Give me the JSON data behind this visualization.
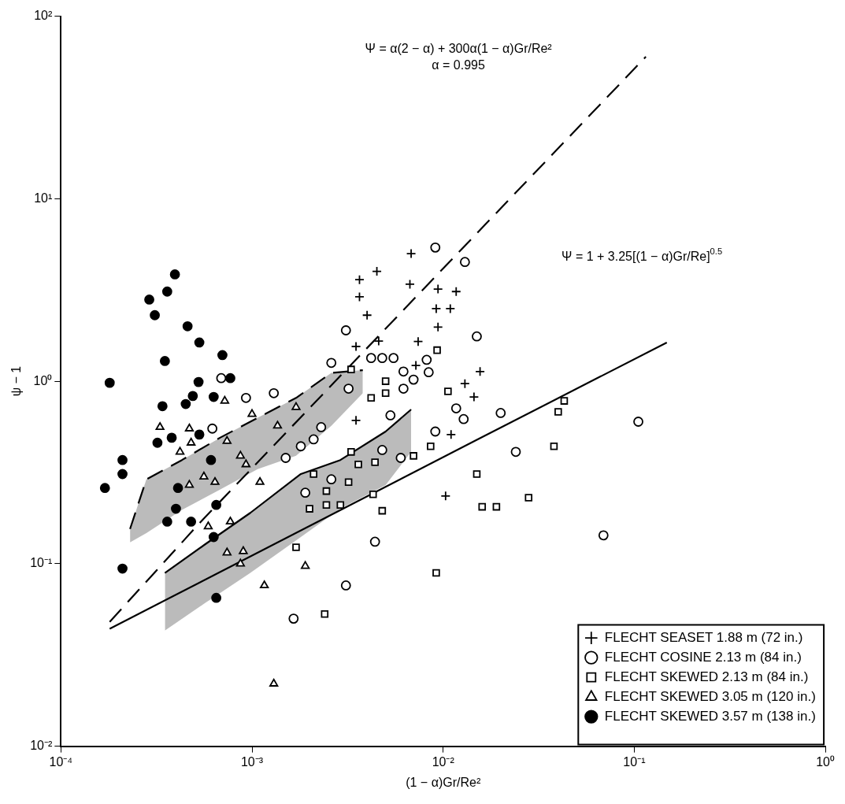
{
  "chart_data": {
    "type": "scatter",
    "xlabel": "(1 − α)Gr/Re²",
    "ylabel": "ψ − 1",
    "log": "xy",
    "grid": false,
    "legend": "bottom right",
    "xlim": [
      0.0001,
      1
    ],
    "ylim": [
      0.01,
      100
    ],
    "xticks": [
      {
        "value": 0.0001,
        "label": "10⁻⁴"
      },
      {
        "value": 0.001,
        "label": "10⁻³"
      },
      {
        "value": 0.01,
        "label": "10⁻²"
      },
      {
        "value": 0.1,
        "label": "10⁻¹"
      },
      {
        "value": 1,
        "label": "10⁰"
      }
    ],
    "yticks": [
      {
        "value": 0.01,
        "label": "10⁻²"
      },
      {
        "value": 0.1,
        "label": "10⁻¹"
      },
      {
        "value": 1,
        "label": "10⁰"
      },
      {
        "value": 10,
        "label": "10¹"
      },
      {
        "value": 100,
        "label": "10²"
      }
    ],
    "annotations": [
      "Ψ = α(2 − α) + 300α(1 − α)Gr/Re²",
      "α = 0.995",
      "Ψ = 1 + 3.25[(1 − α)Gr/Re]$^{0.5}$"
    ],
    "series": [
      {
        "type": "line",
        "color": "#000000",
        "line_style": "dashed",
        "x": [
          0.00023,
          0.00028,
          0.00043,
          0.00068,
          0.00107,
          0.0017,
          0.0026,
          0.0038
        ],
        "values": [
          0.155,
          0.29,
          0.37,
          0.49,
          0.63,
          0.81,
          1.11,
          1.15
        ],
        "upper": [
          0.155,
          0.29,
          0.37,
          0.49,
          0.63,
          0.81,
          1.11,
          1.15
        ],
        "lower": [
          0.131,
          0.147,
          0.197,
          0.255,
          0.33,
          0.39,
          0.57,
          0.86
        ]
      },
      {
        "type": "line",
        "color": "#000000",
        "line_style": "solid",
        "x": [
          0.00035,
          0.00057,
          0.00098,
          0.0018,
          0.0029,
          0.005,
          0.0068
        ],
        "values": [
          0.089,
          0.128,
          0.19,
          0.31,
          0.37,
          0.53,
          0.7
        ],
        "upper": [
          0.089,
          0.128,
          0.19,
          0.31,
          0.37,
          0.53,
          0.7
        ],
        "lower": [
          0.043,
          0.061,
          0.089,
          0.14,
          0.2,
          0.27,
          0.41
        ]
      },
      {
        "type": "line",
        "color": "#000000",
        "line_style": "dashed",
        "x": [
          0.00018,
          0.00054,
          0.115
        ],
        "values": [
          0.048,
          0.17,
          60
        ]
      },
      {
        "type": "line",
        "color": "#000000",
        "line_style": "solid",
        "x": [
          0.00018,
          0.0146,
          0.148
        ],
        "values": [
          0.044,
          0.47,
          1.63
        ]
      },
      {
        "name": "FLECHT SEASET 1.88 m (72 in.)",
        "color": "#000000",
        "marker": "cross",
        "x": [
          0.0068,
          0.0045,
          0.00365,
          0.00365,
          0.004,
          0.0067,
          0.0094,
          0.0117,
          0.0092,
          0.0109,
          0.0094,
          0.0074,
          0.0035,
          0.0046,
          0.0072,
          0.0156,
          0.013,
          0.0145,
          0.0035,
          0.011,
          0.0103
        ],
        "values": [
          5.0,
          4.0,
          3.6,
          2.9,
          2.3,
          3.4,
          3.2,
          3.1,
          2.5,
          2.5,
          1.98,
          1.65,
          1.55,
          1.66,
          1.22,
          1.13,
          0.97,
          0.82,
          0.61,
          0.51,
          0.235
        ]
      },
      {
        "name": "FLECHT COSINE 2.13 m (84 in.)",
        "color": "#000000",
        "marker": "circle",
        "x": [
          0.00069,
          0.00093,
          0.0013,
          0.00062,
          0.0015,
          0.0018,
          0.00165,
          0.0091,
          0.013,
          0.0031,
          0.015,
          0.0026,
          0.0042,
          0.0048,
          0.0055,
          0.0062,
          0.007,
          0.0062,
          0.0082,
          0.0084,
          0.0032,
          0.0023,
          0.0021,
          0.0053,
          0.0091,
          0.0117,
          0.0128,
          0.0048,
          0.006,
          0.0026,
          0.0019,
          0.02,
          0.0044,
          0.0031,
          0.024,
          0.105,
          0.069
        ],
        "values": [
          1.04,
          0.81,
          0.86,
          0.55,
          0.38,
          0.44,
          0.05,
          5.4,
          4.5,
          1.9,
          1.76,
          1.26,
          1.34,
          1.34,
          1.34,
          1.13,
          1.02,
          0.91,
          1.31,
          1.12,
          0.91,
          0.56,
          0.48,
          0.65,
          0.53,
          0.71,
          0.62,
          0.42,
          0.38,
          0.29,
          0.245,
          0.67,
          0.132,
          0.076,
          0.41,
          0.6,
          0.143
        ]
      },
      {
        "name": "FLECHT SKEWED 2.13 m (84 in.)",
        "color": "#000000",
        "marker": "square",
        "x": [
          0.0033,
          0.005,
          0.005,
          0.0042,
          0.0093,
          0.0106,
          0.0086,
          0.0033,
          0.0044,
          0.0036,
          0.007,
          0.0021,
          0.0032,
          0.00245,
          0.002,
          0.00245,
          0.0029,
          0.0043,
          0.0048,
          0.015,
          0.016,
          0.019,
          0.0017,
          0.0092,
          0.0024,
          0.043,
          0.04,
          0.038,
          0.028
        ],
        "values": [
          1.16,
          1.0,
          0.86,
          0.81,
          1.48,
          0.88,
          0.44,
          0.41,
          0.36,
          0.35,
          0.39,
          0.31,
          0.28,
          0.25,
          0.2,
          0.21,
          0.21,
          0.24,
          0.195,
          0.31,
          0.205,
          0.205,
          0.123,
          0.089,
          0.053,
          0.78,
          0.68,
          0.44,
          0.23
        ]
      },
      {
        "name": "FLECHT SKEWED 3.05 m (120 in.)",
        "color": "#000000",
        "marker": "triangle",
        "x": [
          0.00033,
          0.00047,
          0.00048,
          0.00042,
          0.00072,
          0.001,
          0.00136,
          0.0017,
          0.00074,
          0.00087,
          0.00093,
          0.00056,
          0.00047,
          0.00064,
          0.0011,
          0.00059,
          0.00077,
          0.00074,
          0.0009,
          0.00087,
          0.0019,
          0.00116,
          0.0013
        ],
        "values": [
          0.56,
          0.55,
          0.46,
          0.41,
          0.78,
          0.66,
          0.57,
          0.72,
          0.47,
          0.39,
          0.35,
          0.3,
          0.27,
          0.28,
          0.28,
          0.16,
          0.17,
          0.115,
          0.117,
          0.1,
          0.097,
          0.076,
          0.022
        ]
      },
      {
        "name": "FLECHT SKEWED 3.57 m (138 in.)",
        "color": "#000000",
        "marker": "circle",
        "x": [
          0.000395,
          0.00036,
          0.00029,
          0.00031,
          0.00046,
          0.00053,
          0.0007,
          0.00035,
          0.00018,
          0.000525,
          0.00077,
          0.00049,
          0.00045,
          0.00063,
          0.00034,
          0.00038,
          0.00032,
          0.00053,
          0.00021,
          0.00021,
          0.00017,
          0.00061,
          0.00041,
          0.0004,
          0.00065,
          0.00036,
          0.00048,
          0.00063,
          0.00021,
          0.00065
        ],
        "values": [
          3.85,
          3.1,
          2.8,
          2.3,
          2.0,
          1.63,
          1.39,
          1.29,
          0.98,
          0.99,
          1.04,
          0.83,
          0.75,
          0.82,
          0.73,
          0.49,
          0.46,
          0.51,
          0.37,
          0.31,
          0.26,
          0.37,
          0.26,
          0.2,
          0.21,
          0.17,
          0.17,
          0.14,
          0.094,
          0.065
        ]
      }
    ]
  }
}
